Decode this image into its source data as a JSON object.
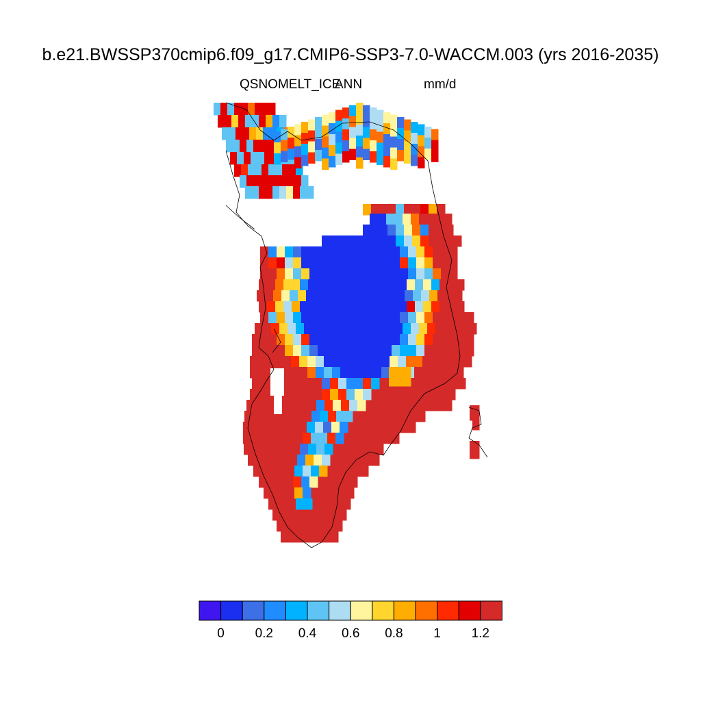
{
  "title": "b.e21.BWSSP370cmip6.f09_g17.CMIP6-SSP3-7.0-WACCM.003 (yrs 2016-2035)",
  "subtitle_left": "QSNOMELT_ICE",
  "subtitle_center": "ANN",
  "subtitle_right": "mm/d",
  "colorbar": {
    "colors": [
      "#3f16f0",
      "#1a2fef",
      "#3d6fe6",
      "#1f8dff",
      "#00b2ff",
      "#5fc4f3",
      "#aedcf2",
      "#fff59e",
      "#ffd52e",
      "#ffad00",
      "#ff7000",
      "#ff2a00",
      "#e30000",
      "#d42a2a"
    ],
    "tick_labels": [
      "0",
      "0.2",
      "0.4",
      "0.6",
      "0.8",
      "1",
      "1.2"
    ]
  },
  "chart_data": {
    "type": "heatmap",
    "title": "b.e21.BWSSP370cmip6.f09_g17.CMIP6-SSP3-7.0-WACCM.003 (yrs 2016-2035)",
    "variable": "QSNOMELT_ICE",
    "period": "ANN",
    "units": "mm/d",
    "region": "Greenland",
    "levels": [
      0,
      0.1,
      0.2,
      0.3,
      0.4,
      0.5,
      0.6,
      0.7,
      0.8,
      0.9,
      1.0,
      1.1,
      1.2
    ],
    "pattern": {
      "interior_ice_sheet_value": 0.05,
      "margin_value": 1.25
    }
  }
}
